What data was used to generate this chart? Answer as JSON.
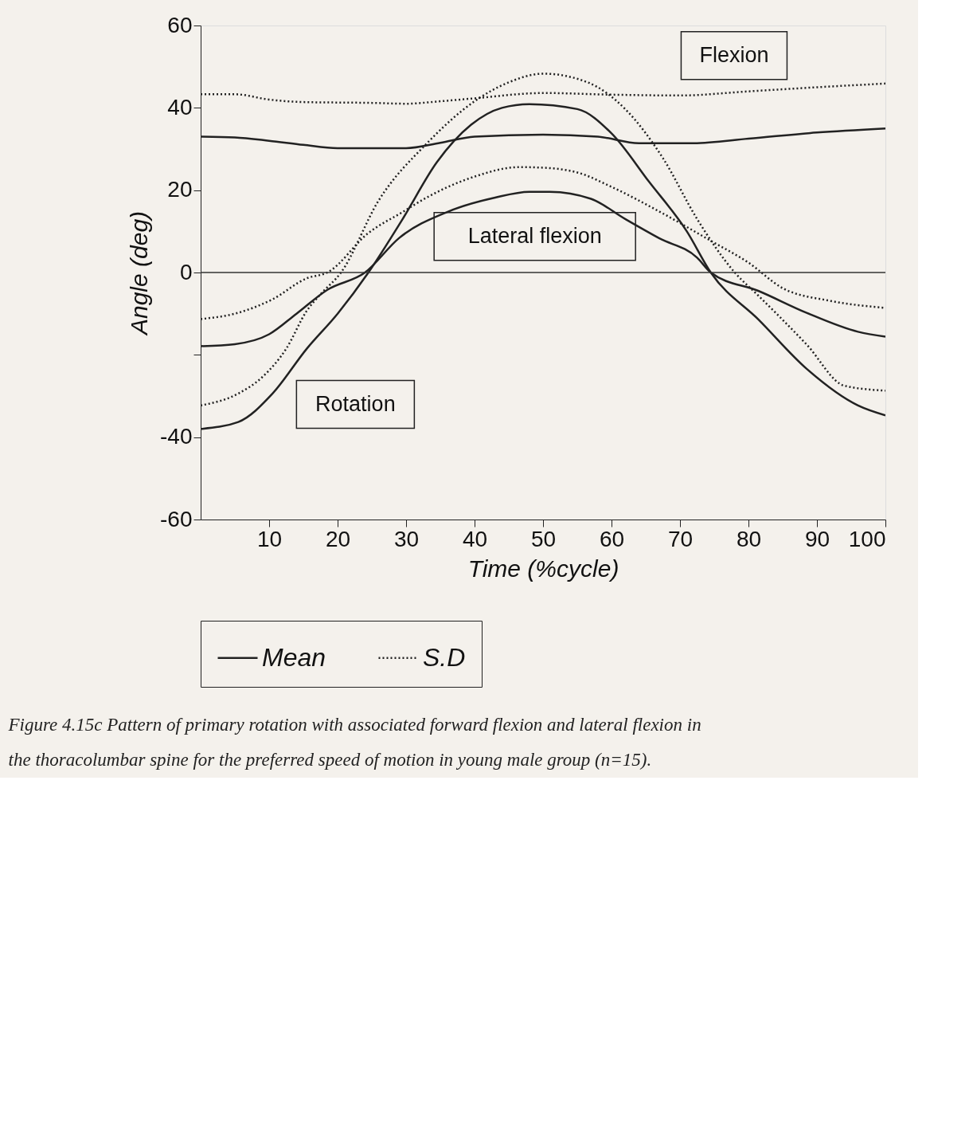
{
  "chart_data": {
    "type": "line",
    "xlabel": "Time (%cycle)",
    "ylabel": "Angle (deg)",
    "xlim": [
      0,
      100
    ],
    "ylim": [
      -60,
      60
    ],
    "xticks": [
      10,
      20,
      30,
      40,
      50,
      60,
      70,
      80,
      90,
      100
    ],
    "yticks": [
      -60,
      -40,
      {
        "value": -20,
        "label": null
      },
      0,
      20,
      40,
      60
    ],
    "grid": false,
    "legend": "bottom",
    "ref_lines": [
      {
        "axis": "y",
        "value": 0,
        "color": "#333333"
      }
    ],
    "series": [
      {
        "name": "Mean",
        "color": "#222222",
        "line_style": "solid",
        "x": [
          0,
          5,
          10,
          15,
          20,
          30,
          35,
          40,
          50,
          58,
          64,
          72,
          80,
          90,
          100
        ],
        "values": [
          33,
          32.8,
          32,
          31,
          30.2,
          30.2,
          31.5,
          33,
          33.5,
          33,
          31.4,
          31.4,
          32.5,
          34,
          35
        ]
      },
      {
        "name": "S.D",
        "color": "#222222",
        "line_style": "dotted",
        "x": [
          0,
          5,
          10,
          15,
          25,
          30,
          35,
          40,
          50,
          60,
          70,
          80,
          90,
          100
        ],
        "values": [
          43.3,
          43.3,
          42,
          41.4,
          41.2,
          41,
          41.6,
          42.3,
          43.6,
          43.2,
          43,
          44,
          45,
          45.9
        ]
      },
      {
        "color": "#222222",
        "line_style": "solid",
        "x": [
          0,
          5,
          10,
          14,
          18.5,
          24,
          29,
          36,
          43,
          48,
          51,
          57,
          62,
          67,
          72.5,
          74.5,
          81.5,
          88.5,
          96,
          100
        ],
        "values": [
          -17.9,
          -17.4,
          -15,
          -10,
          -4.2,
          0,
          8.4,
          14.7,
          18.2,
          19.6,
          19.6,
          17.9,
          13,
          8.3,
          3.6,
          0,
          -4.5,
          -9.8,
          -14.4,
          -15.6
        ]
      },
      {
        "color": "#222222",
        "line_style": "dotted",
        "x": [
          0,
          5,
          10.5,
          15.5,
          18.5,
          24.5,
          29.5,
          33,
          40,
          46.5,
          49.5,
          55,
          60,
          67,
          74.5,
          80,
          85,
          92,
          100
        ],
        "values": [
          -11.3,
          -10,
          -6.5,
          -1.4,
          0,
          9.6,
          14.7,
          18.2,
          23.3,
          25.6,
          25.5,
          24.3,
          20.8,
          14.8,
          7.7,
          2.4,
          -3.8,
          -6.9,
          -8.6
        ]
      },
      {
        "color": "#222222",
        "line_style": "solid",
        "x": [
          0,
          5.5,
          10.5,
          15.5,
          20,
          24.5,
          29.5,
          34.5,
          39.5,
          44,
          48,
          55,
          60,
          65.5,
          71,
          74.5,
          81.5,
          88.5,
          96,
          100
        ],
        "values": [
          -38,
          -36.3,
          -29.4,
          -18.5,
          -10,
          0,
          13,
          26.8,
          35.9,
          40,
          40.9,
          39.7,
          33.8,
          22,
          10,
          0,
          -11.5,
          -23.4,
          -32.3,
          -34.7
        ]
      },
      {
        "color": "#222222",
        "line_style": "dotted",
        "x": [
          0,
          5.5,
          9,
          12.5,
          15.5,
          17.5,
          20.5,
          26,
          33,
          40,
          45,
          50,
          56.5,
          62,
          67.5,
          72.5,
          78,
          81.5,
          88.5,
          94,
          100
        ],
        "values": [
          -32.3,
          -29.4,
          -25.4,
          -18.5,
          -9.3,
          -5.3,
          0,
          17.5,
          31.3,
          41.6,
          46.2,
          48.3,
          46.2,
          39.7,
          27.8,
          13,
          0,
          -5.7,
          -17.5,
          -27.5,
          -28.7
        ]
      }
    ],
    "annotations": [
      "Flexion",
      "Lateral flexion",
      "Rotation",
      "Figure 4.15c Pattern of primary rotation with associated forward flexion and lateral flexion in the thoracolumbar spine for the preferred speed of motion in young male group (n=15)."
    ]
  }
}
